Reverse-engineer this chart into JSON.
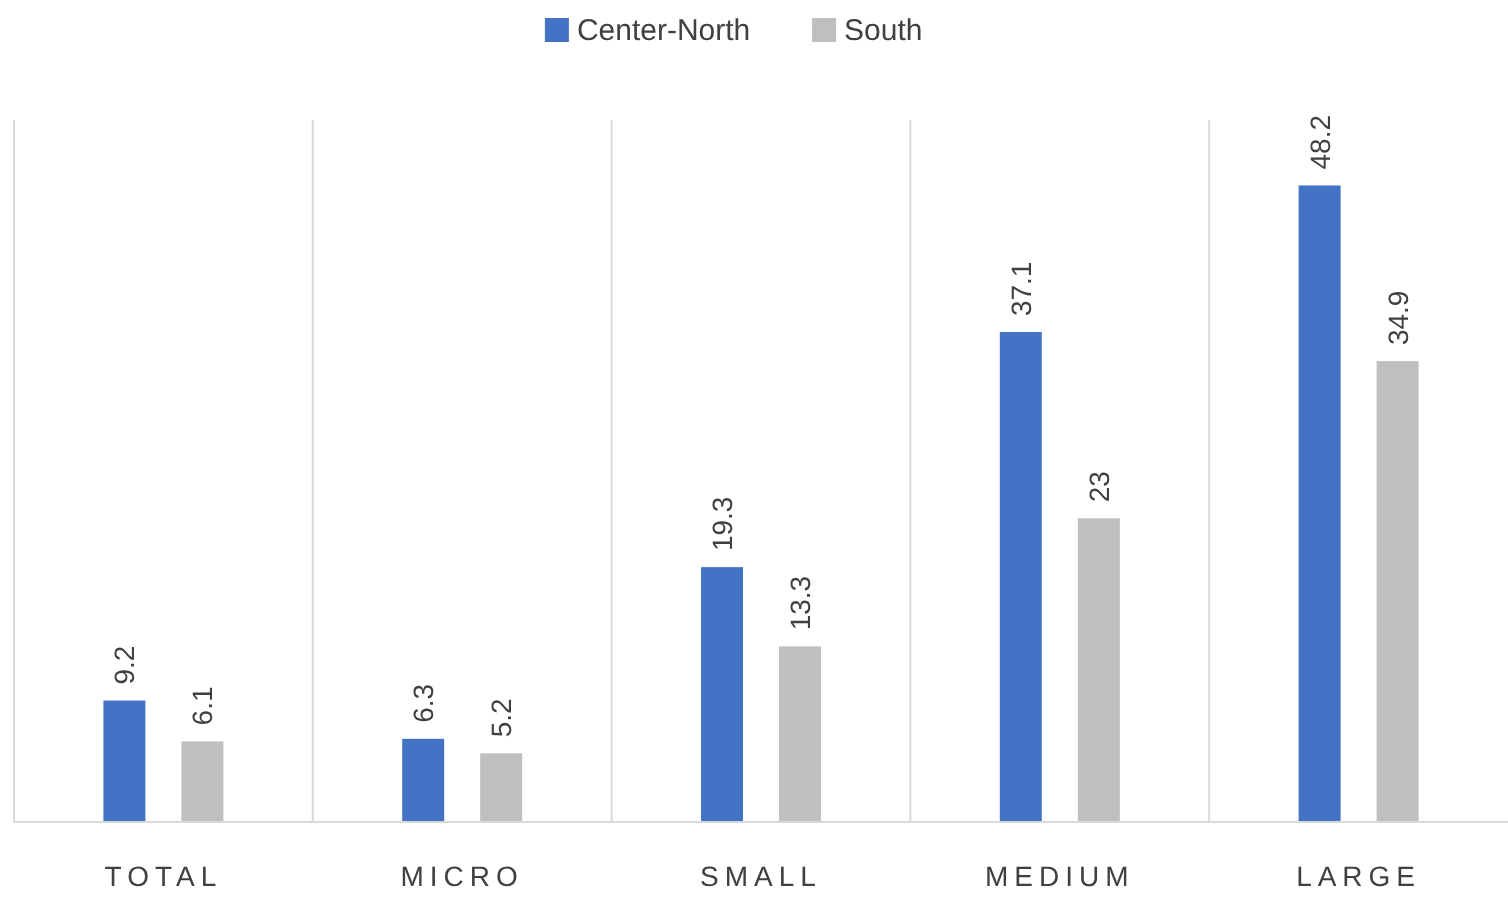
{
  "chart_data": {
    "type": "bar",
    "categories": [
      "TOTAL",
      "MICRO",
      "SMALL",
      "MEDIUM",
      "LARGE"
    ],
    "series": [
      {
        "name": "Center-North",
        "color": "#4472c4",
        "values": [
          9.2,
          6.3,
          19.3,
          37.1,
          48.2
        ]
      },
      {
        "name": "South",
        "color": "#bfbfbf",
        "values": [
          6.1,
          5.2,
          13.3,
          23,
          34.9
        ]
      }
    ],
    "data_labels": true,
    "grid": "x",
    "legend": "top"
  }
}
